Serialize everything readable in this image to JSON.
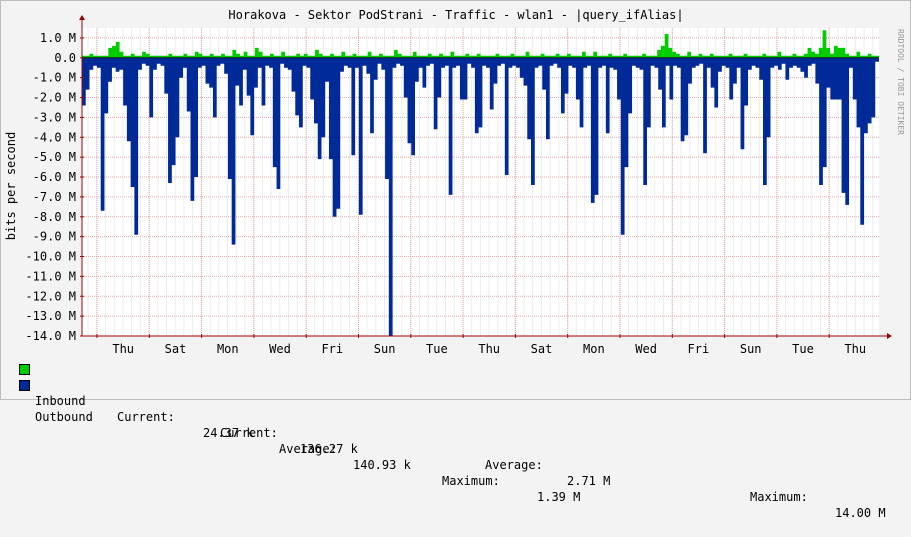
{
  "window": {
    "title": "Horakova - Sektor PodStrani - Traffic - wlan1 - |query_ifAlias|",
    "watermark": "RRDTOOL / TOBI OETIKER"
  },
  "chart_data": {
    "type": "area",
    "title": "Horakova - Sektor PodStrani - Traffic - wlan1 - |query_ifAlias|",
    "ylabel": "bits per second",
    "xlabel": "",
    "ylim": [
      -14.0,
      1.5
    ],
    "yticks": [
      "1.0 M",
      "0.0",
      "-1.0 M",
      "-2.0 M",
      "-3.0 M",
      "-4.0 M",
      "-5.0 M",
      "-6.0 M",
      "-7.0 M",
      "-8.0 M",
      "-9.0 M",
      "-10.0 M",
      "-11.0 M",
      "-12.0 M",
      "-13.0 M",
      "-14.0 M"
    ],
    "ytick_values": [
      1,
      0,
      -1,
      -2,
      -3,
      -4,
      -5,
      -6,
      -7,
      -8,
      -9,
      -10,
      -11,
      -12,
      -13,
      -14
    ],
    "xticks": [
      "Thu",
      "Sat",
      "Mon",
      "Wed",
      "Fri",
      "Sun",
      "Tue",
      "Thu",
      "Sat",
      "Mon",
      "Wed",
      "Fri",
      "Sun",
      "Tue",
      "Thu"
    ],
    "grid": true,
    "legend": "bottom",
    "colors": {
      "inbound": "#00cc00",
      "outbound": "#002a97",
      "grid": "#e0aaaa",
      "axis": "#a00000"
    },
    "series": [
      {
        "name": "Inbound",
        "unit": "M",
        "values": [
          0.1,
          0.1,
          0.2,
          0.1,
          0.1,
          0.1,
          0.1,
          0.5,
          0.6,
          0.8,
          0.3,
          0.1,
          0.1,
          0.2,
          0.1,
          0.1,
          0.3,
          0.2,
          0.1,
          0.1,
          0.1,
          0.1,
          0.1,
          0.2,
          0.1,
          0.1,
          0.1,
          0.2,
          0.1,
          0.1,
          0.3,
          0.2,
          0.1,
          0.1,
          0.2,
          0.1,
          0.1,
          0.2,
          0.1,
          0.1,
          0.4,
          0.2,
          0.1,
          0.3,
          0.1,
          0.1,
          0.5,
          0.3,
          0.1,
          0.1,
          0.2,
          0.1,
          0.1,
          0.3,
          0.1,
          0.1,
          0.1,
          0.2,
          0.1,
          0.2,
          0.1,
          0.1,
          0.4,
          0.2,
          0.1,
          0.1,
          0.2,
          0.1,
          0.1,
          0.3,
          0.1,
          0.1,
          0.2,
          0.1,
          0.1,
          0.1,
          0.3,
          0.1,
          0.1,
          0.2,
          0.1,
          0.1,
          0.1,
          0.4,
          0.2,
          0.1,
          0.1,
          0.1,
          0.3,
          0.1,
          0.1,
          0.1,
          0.2,
          0.1,
          0.1,
          0.2,
          0.1,
          0.1,
          0.3,
          0.1,
          0.1,
          0.1,
          0.2,
          0.1,
          0.1,
          0.2,
          0.1,
          0.1,
          0.1,
          0.1,
          0.2,
          0.1,
          0.1,
          0.1,
          0.2,
          0.1,
          0.1,
          0.1,
          0.3,
          0.1,
          0.1,
          0.1,
          0.2,
          0.1,
          0.1,
          0.1,
          0.2,
          0.1,
          0.1,
          0.2,
          0.1,
          0.1,
          0.1,
          0.3,
          0.1,
          0.1,
          0.3,
          0.1,
          0.1,
          0.1,
          0.2,
          0.1,
          0.1,
          0.1,
          0.2,
          0.1,
          0.1,
          0.1,
          0.1,
          0.2,
          0.1,
          0.1,
          0.1,
          0.4,
          0.6,
          1.2,
          0.5,
          0.3,
          0.2,
          0.1,
          0.1,
          0.3,
          0.1,
          0.1,
          0.2,
          0.1,
          0.1,
          0.2,
          0.1,
          0.1,
          0.1,
          0.1,
          0.2,
          0.1,
          0.1,
          0.1,
          0.2,
          0.1,
          0.1,
          0.1,
          0.1,
          0.2,
          0.1,
          0.1,
          0.1,
          0.3,
          0.1,
          0.1,
          0.1,
          0.2,
          0.1,
          0.1,
          0.2,
          0.5,
          0.3,
          0.2,
          0.5,
          1.39,
          0.5,
          0.2,
          0.6,
          0.5,
          0.5,
          0.2,
          0.1,
          0.1,
          0.3,
          0.1,
          0.1,
          0.2,
          0.1,
          0.1
        ],
        "legend_text": {
          "current": "24.37 k",
          "average": "140.93 k",
          "maximum": "1.39 M"
        }
      },
      {
        "name": "Outbound",
        "unit": "M",
        "values": [
          -2.4,
          -1.6,
          -0.6,
          -0.4,
          -0.5,
          -7.7,
          -2.8,
          -1.2,
          -0.5,
          -0.7,
          -0.6,
          -2.4,
          -4.2,
          -6.5,
          -8.9,
          -0.6,
          -0.3,
          -0.4,
          -3.0,
          -0.6,
          -0.3,
          -0.4,
          -1.8,
          -6.3,
          -5.4,
          -4.0,
          -1.0,
          -0.5,
          -2.7,
          -7.2,
          -6.0,
          -0.5,
          -0.4,
          -1.3,
          -1.5,
          -3.0,
          -0.4,
          -0.3,
          -0.8,
          -6.1,
          -9.4,
          -1.4,
          -2.4,
          -0.6,
          -1.9,
          -3.9,
          -1.5,
          -0.5,
          -2.4,
          -0.4,
          -0.5,
          -5.5,
          -6.6,
          -0.3,
          -0.5,
          -0.6,
          -1.7,
          -2.9,
          -3.5,
          -0.4,
          -0.5,
          -2.1,
          -3.3,
          -5.1,
          -4.0,
          -1.2,
          -5.1,
          -8.0,
          -7.6,
          -0.7,
          -0.4,
          -0.5,
          -4.9,
          -0.5,
          -7.9,
          -0.4,
          -0.8,
          -3.8,
          -1.1,
          -0.3,
          -0.6,
          -6.1,
          -14.0,
          -0.5,
          -0.3,
          -0.4,
          -2.0,
          -4.3,
          -4.9,
          -1.2,
          -0.5,
          -1.5,
          -0.4,
          -0.3,
          -3.6,
          -2.0,
          -0.5,
          -0.4,
          -6.9,
          -0.5,
          -0.4,
          -2.1,
          -2.1,
          -0.3,
          -0.5,
          -3.8,
          -3.5,
          -0.4,
          -0.5,
          -2.6,
          -1.3,
          -0.4,
          -0.3,
          -5.9,
          -0.5,
          -0.4,
          -0.5,
          -1.0,
          -1.4,
          -4.1,
          -6.4,
          -0.5,
          -0.4,
          -1.6,
          -4.1,
          -0.4,
          -0.3,
          -0.5,
          -2.8,
          -1.8,
          -0.4,
          -0.5,
          -2.1,
          -3.5,
          -0.5,
          -0.4,
          -7.3,
          -6.9,
          -0.5,
          -0.4,
          -3.8,
          -0.5,
          -0.6,
          -2.1,
          -8.9,
          -5.5,
          -2.8,
          -0.4,
          -0.5,
          -0.6,
          -6.4,
          -3.5,
          -0.4,
          -0.5,
          -1.6,
          -3.5,
          -0.4,
          -2.1,
          -0.4,
          -0.5,
          -4.2,
          -3.9,
          -1.3,
          -0.5,
          -0.4,
          -0.3,
          -4.8,
          -0.5,
          -1.5,
          -2.5,
          -0.7,
          -0.4,
          -0.5,
          -2.1,
          -1.3,
          -0.5,
          -4.6,
          -2.4,
          -0.6,
          -0.4,
          -0.5,
          -1.1,
          -6.4,
          -4.0,
          -0.5,
          -0.4,
          -0.6,
          -0.3,
          -1.1,
          -0.5,
          -0.4,
          -0.5,
          -0.7,
          -1.0,
          -0.4,
          -0.3,
          -1.3,
          -6.4,
          -5.5,
          -1.5,
          -2.1,
          -2.1,
          -2.1,
          -6.8,
          -7.4,
          -0.5,
          -2.1,
          -3.5,
          -8.4,
          -3.8,
          -3.3,
          -3.0,
          -0.2
        ],
        "legend_text": {
          "current": "136.27 k",
          "average": "2.71 M",
          "maximum": "14.00 M"
        }
      }
    ]
  },
  "legend": {
    "inbound_label": "Inbound",
    "outbound_label": "Outbound",
    "current_label": "Current:",
    "average_label": "Average:",
    "maximum_label": "Maximum:"
  }
}
